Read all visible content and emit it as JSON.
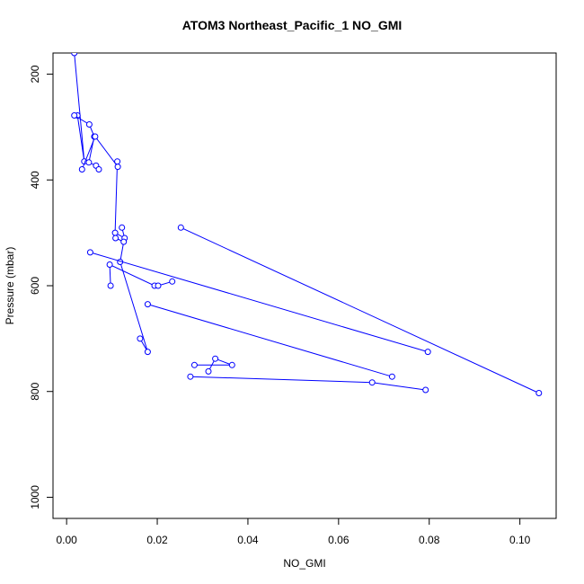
{
  "chart_data": {
    "type": "line",
    "title": "ATOM3 Northeast_Pacific_1 NO_GMI",
    "xlabel": "NO_GMI",
    "ylabel": "Pressure (mbar)",
    "xlim": [
      -0.003,
      0.108
    ],
    "ylim": [
      1040,
      160
    ],
    "y_reversed": true,
    "xticks": [
      0.0,
      0.02,
      0.04,
      0.06,
      0.08,
      0.1
    ],
    "xtick_labels": [
      "0.00",
      "0.02",
      "0.04",
      "0.06",
      "0.08",
      "0.10"
    ],
    "yticks": [
      200,
      400,
      600,
      800,
      1000
    ],
    "ytick_labels": [
      "200",
      "400",
      "600",
      "800",
      "1000"
    ],
    "grid": false,
    "line_color": "#0000ff",
    "marker": "open-circle",
    "series": [
      {
        "x": [
          0.0017,
          0.0039,
          0.0024
        ],
        "y": [
          160,
          365,
          278
        ]
      },
      {
        "x": [
          0.0017,
          0.005,
          0.0061,
          0.0049,
          0.0065,
          0.0071
        ],
        "y": [
          278,
          295,
          318,
          367,
          373,
          380
        ]
      },
      {
        "x": [
          0.0034,
          0.0063,
          0.0113,
          0.0112,
          0.0107,
          0.0128,
          0.0122
        ],
        "y": [
          380,
          318,
          375,
          365,
          500,
          510,
          490
        ]
      },
      {
        "x": [
          0.0108,
          0.0126,
          0.0118,
          0.0179,
          0.0162
        ],
        "y": [
          510,
          517,
          555,
          725,
          700
        ]
      },
      {
        "x": [
          0.0052,
          0.0797
        ],
        "y": [
          537,
          725
        ]
      },
      {
        "x": [
          0.0097,
          0.0095,
          0.0194,
          0.0202,
          0.0233
        ],
        "y": [
          600,
          560,
          600,
          600,
          592
        ]
      },
      {
        "x": [
          0.0179,
          0.0718
        ],
        "y": [
          635,
          772
        ]
      },
      {
        "x": [
          0.0252,
          0.1042
        ],
        "y": [
          490,
          803
        ]
      },
      {
        "x": [
          0.0282,
          0.0365,
          0.0328,
          0.0313
        ],
        "y": [
          750,
          750,
          738,
          762
        ]
      },
      {
        "x": [
          0.0273,
          0.0674,
          0.0792
        ],
        "y": [
          772,
          783,
          797
        ]
      }
    ]
  }
}
